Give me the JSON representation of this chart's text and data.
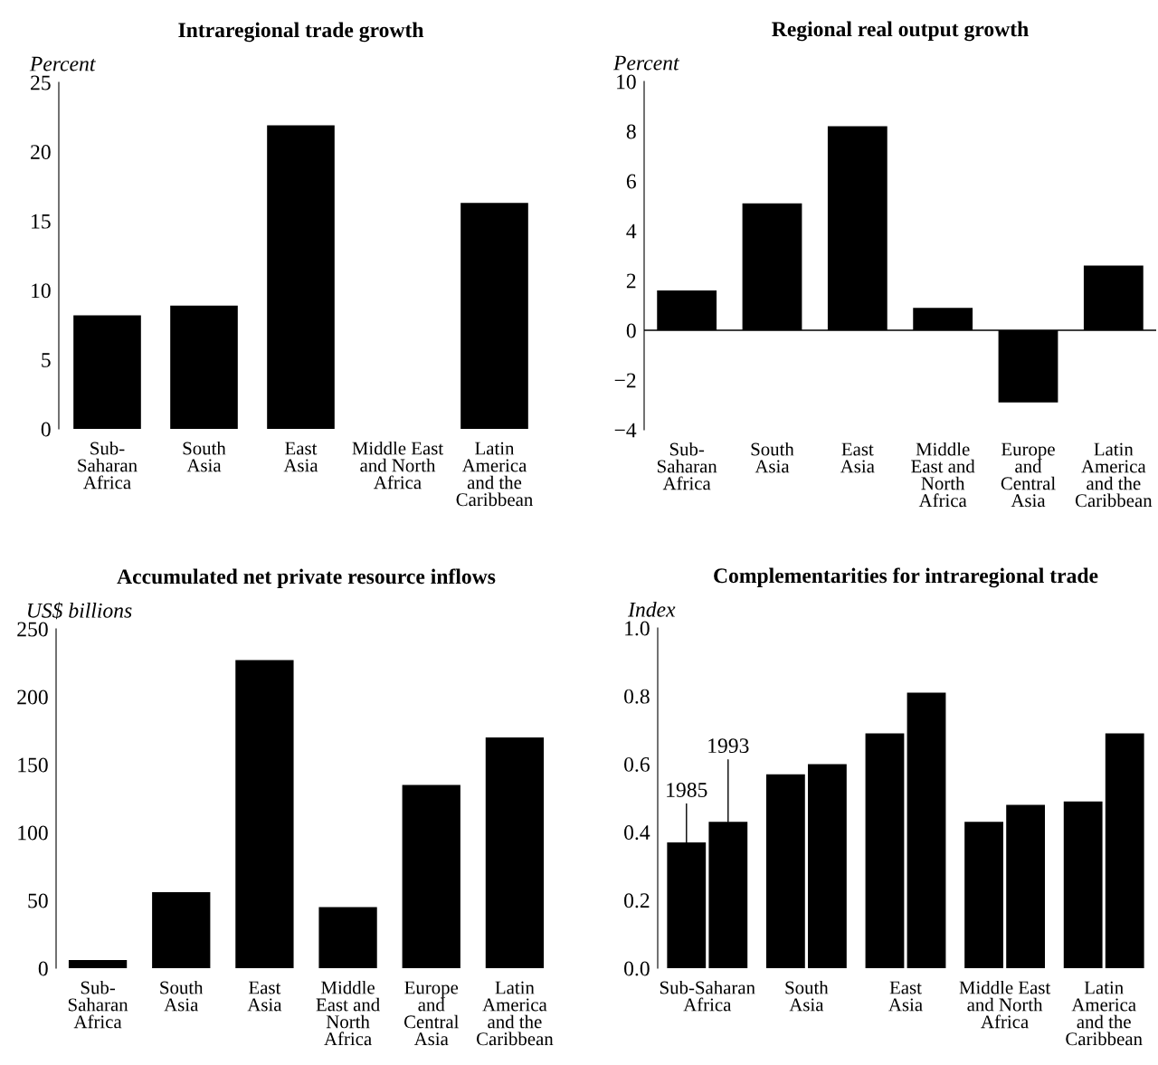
{
  "chart_data": [
    {
      "type": "bar",
      "title": "Intraregional trade growth",
      "ylabel": "Percent",
      "categories": [
        "Sub-\nSaharan\nAfrica",
        "South\nAsia",
        "East\nAsia",
        "Middle East\nand North\nAfrica",
        "Latin\nAmerica\nand the\nCaribbean"
      ],
      "series": [
        {
          "color": "#000000",
          "values": [
            8.2,
            8.9,
            21.9,
            null,
            16.3
          ]
        }
      ],
      "ylim": [
        0,
        25
      ],
      "yticks": [
        0,
        5,
        10,
        15,
        20,
        25
      ],
      "grid": false,
      "legend": false
    },
    {
      "type": "bar",
      "title": "Regional real output growth",
      "ylabel": "Percent",
      "categories": [
        "Sub-\nSaharan\nAfrica",
        "South\nAsia",
        "East\nAsia",
        "Middle\nEast and\nNorth\nAfrica",
        "Europe\nand\nCentral\nAsia",
        "Latin\nAmerica\nand the\nCaribbean"
      ],
      "series": [
        {
          "color": "#000000",
          "values": [
            1.6,
            5.1,
            8.2,
            0.9,
            -2.9,
            2.6
          ]
        }
      ],
      "ylim": [
        -4,
        10
      ],
      "yticks": [
        {
          "value": -4,
          "label": "−4"
        },
        {
          "value": -2,
          "label": "−2"
        },
        0,
        2,
        4,
        6,
        8,
        10
      ],
      "ref_lines": [
        {
          "axis": "y",
          "value": 0,
          "color": "#000000"
        }
      ],
      "legend": false
    },
    {
      "type": "bar",
      "title": "Accumulated net private resource inflows",
      "ylabel": "US$ billions",
      "categories": [
        "Sub-\nSaharan\nAfrica",
        "South\nAsia",
        "East\nAsia",
        "Middle\nEast and\nNorth\nAfrica",
        "Europe\nand\nCentral\nAsia",
        "Latin\nAmerica\nand the\nCaribbean"
      ],
      "series": [
        {
          "color": "#000000",
          "values": [
            6,
            56,
            227,
            45,
            135,
            170
          ]
        }
      ],
      "ylim": [
        0,
        250
      ],
      "yticks": [
        0,
        50,
        100,
        150,
        200,
        250
      ],
      "grid": false,
      "legend": false
    },
    {
      "type": "bar",
      "title": "Complementarities for intraregional trade",
      "ylabel": "Index",
      "categories": [
        "Sub-Saharan\nAfrica",
        "South\nAsia",
        "East\nAsia",
        "Middle East\nand North\nAfrica",
        "Latin\nAmerica\nand the\nCaribbean"
      ],
      "series": [
        {
          "name": "1985",
          "color": "#000000",
          "values": [
            0.37,
            0.57,
            0.69,
            0.43,
            0.49
          ]
        },
        {
          "name": "1993",
          "color": "#000000",
          "values": [
            0.43,
            0.6,
            0.81,
            0.48,
            0.69
          ]
        }
      ],
      "ylim": [
        0,
        1.0
      ],
      "yticks": [
        {
          "value": 0,
          "label": "0.0"
        },
        {
          "value": 0.2,
          "label": "0.2"
        },
        {
          "value": 0.4,
          "label": "0.4"
        },
        {
          "value": 0.6,
          "label": "0.6"
        },
        {
          "value": 0.8,
          "label": "0.8"
        },
        {
          "value": 1.0,
          "label": "1.0"
        }
      ],
      "grid": false,
      "legend": false
    }
  ]
}
